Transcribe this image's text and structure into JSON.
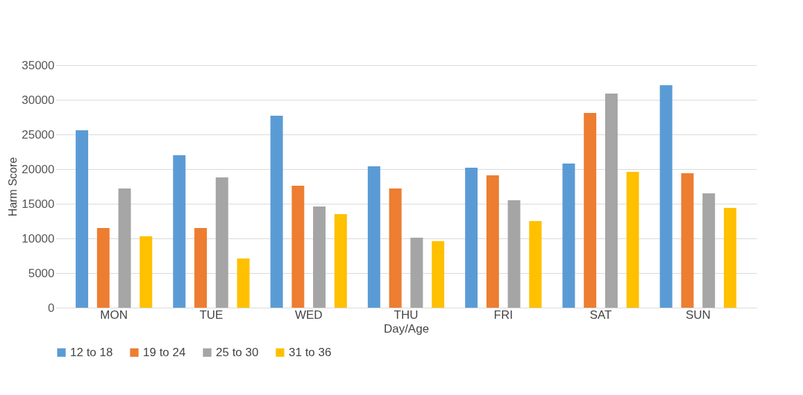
{
  "chart_data": {
    "type": "bar",
    "xlabel": "Day/Age",
    "ylabel": "Harm Score",
    "categories": [
      "MON",
      "TUE",
      "WED",
      "THU",
      "FRI",
      "SAT",
      "SUN"
    ],
    "series": [
      {
        "name": "12 to 18",
        "color": "#5b9bd5",
        "values": [
          25600,
          22000,
          27700,
          20400,
          20200,
          20800,
          32100
        ]
      },
      {
        "name": "19 to 24",
        "color": "#ed7d31",
        "values": [
          11500,
          11500,
          17600,
          17200,
          19100,
          28100,
          19400
        ]
      },
      {
        "name": "25 to 30",
        "color": "#a5a5a5",
        "values": [
          17200,
          18800,
          14600,
          10100,
          15500,
          30900,
          16500
        ]
      },
      {
        "name": "31 to 36",
        "color": "#ffc000",
        "values": [
          10300,
          7100,
          13500,
          9600,
          12500,
          19600,
          14400
        ]
      }
    ],
    "ylim": [
      0,
      35000
    ],
    "yticks": [
      0,
      5000,
      10000,
      15000,
      20000,
      25000,
      30000,
      35000
    ],
    "grid": "y",
    "legend": "bottom"
  }
}
